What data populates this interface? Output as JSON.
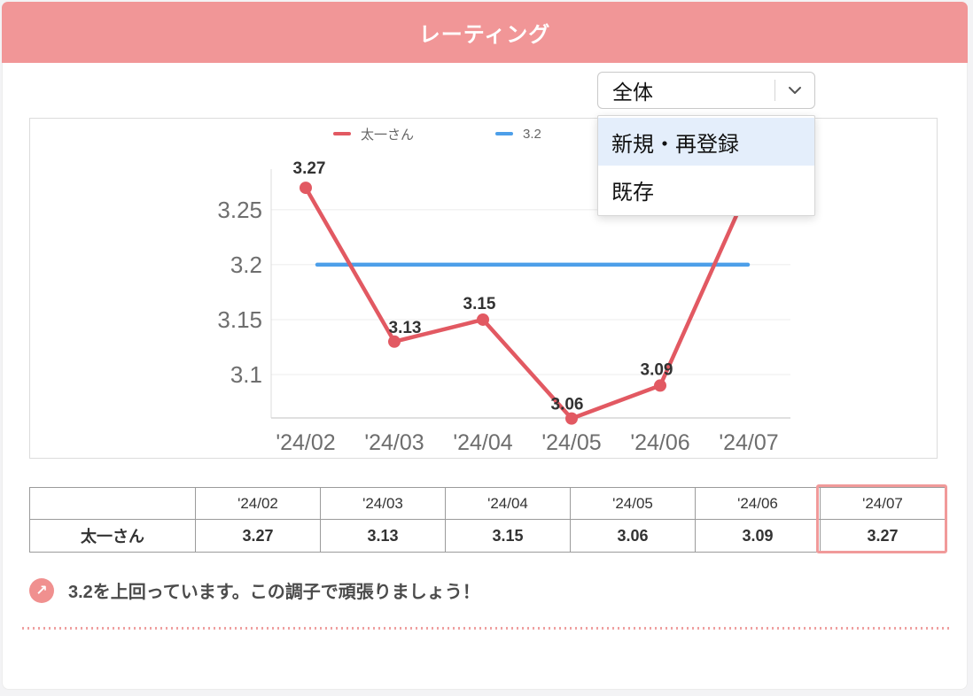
{
  "header": {
    "title": "レーティング"
  },
  "filter": {
    "selected": "全体",
    "options": [
      "新規・再登録",
      "既存"
    ],
    "highlighted_option": "新規・再登録"
  },
  "chart_data": {
    "type": "line",
    "categories": [
      "'24/02",
      "'24/03",
      "'24/04",
      "'24/05",
      "'24/06",
      "'24/07"
    ],
    "series": [
      {
        "name": "太一さん",
        "values": [
          3.27,
          3.13,
          3.15,
          3.06,
          3.09,
          3.27
        ],
        "color": "#E25962",
        "point_labels": [
          "3.27",
          "3.13",
          "3.15",
          "3.06",
          "3.09",
          "3.27"
        ]
      },
      {
        "name": "3.2",
        "values": [
          3.2,
          3.2,
          3.2,
          3.2,
          3.2,
          3.2
        ],
        "color": "#4D9FE9"
      }
    ],
    "y_ticks": [
      3.25,
      3.2,
      3.15,
      3.1
    ],
    "ylim": [
      3.0605,
      3.287
    ],
    "legend_position": "top",
    "grid": true,
    "title": "",
    "xlabel": "",
    "ylabel": ""
  },
  "table": {
    "headers": [
      "",
      "'24/02",
      "'24/03",
      "'24/04",
      "'24/05",
      "'24/06",
      "'24/07"
    ],
    "rows": [
      [
        "太一さん",
        "3.27",
        "3.13",
        "3.15",
        "3.06",
        "3.09",
        "3.27"
      ]
    ],
    "highlighted_column": "'24/07"
  },
  "message": {
    "icon": "arrow-up-right",
    "text": "3.2を上回っています。この調子で頑張りましょう！"
  },
  "colors": {
    "header_bg": "#F19697",
    "series_red": "#E25962",
    "series_blue": "#4D9FE9",
    "menu_highlight": "#E4EEFB",
    "table_highlight_border": "#F19A9A",
    "dotted_divider": "#EFA0A0",
    "axis_text": "#6E6E6E",
    "grid_line": "#ECECEC"
  }
}
